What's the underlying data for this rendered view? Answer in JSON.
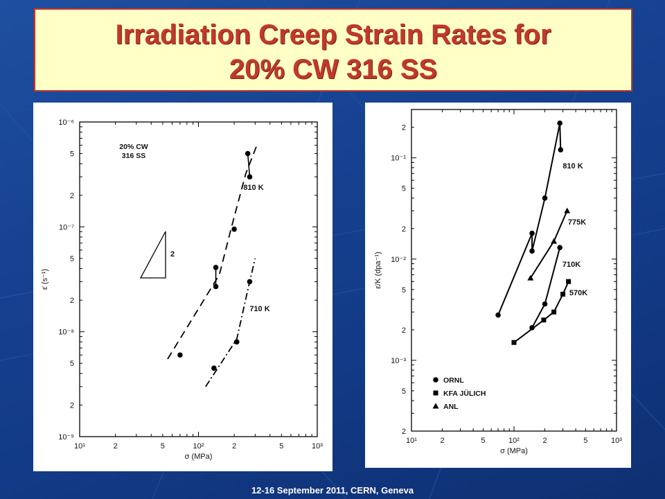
{
  "slide": {
    "title_line1": "Irradiation Creep Strain Rates for",
    "title_line2": "20% CW 316 SS",
    "footer": "12-16  September 2011, CERN, Geneva"
  },
  "chart_data": [
    {
      "type": "line",
      "annotation": "20% CW\n316 SS",
      "ylabel": "ε̇ (s⁻¹)",
      "xlabel": "σ (MPa)",
      "xscale": "log",
      "yscale": "log",
      "xlim": [
        10,
        1000
      ],
      "ylim": [
        1e-09,
        1e-06
      ],
      "x_ticks": [
        {
          "v": 10,
          "t": "10¹"
        },
        {
          "v": 20,
          "t": "2"
        },
        {
          "v": 50,
          "t": "5"
        },
        {
          "v": 100,
          "t": "10²"
        },
        {
          "v": 200,
          "t": "2"
        },
        {
          "v": 500,
          "t": "5"
        },
        {
          "v": 1000,
          "t": "10³"
        }
      ],
      "y_ticks": [
        {
          "v": 1e-09,
          "t": "10⁻⁹"
        },
        {
          "v": 2e-09,
          "t": "2"
        },
        {
          "v": 5e-09,
          "t": "5"
        },
        {
          "v": 1e-08,
          "t": "10⁻⁸"
        },
        {
          "v": 2e-08,
          "t": "2"
        },
        {
          "v": 5e-08,
          "t": "5"
        },
        {
          "v": 1e-07,
          "t": "10⁻⁷"
        },
        {
          "v": 2e-07,
          "t": "2"
        },
        {
          "v": 5e-07,
          "t": "5"
        },
        {
          "v": 1e-06,
          "t": "10⁻⁶"
        }
      ],
      "slope_label": "2",
      "series": [
        {
          "name": "810 K",
          "points": [
            [
              70,
              6e-09
            ],
            [
              140,
              4.1e-08
            ],
            [
              140,
              2.7e-08
            ],
            [
              200,
              9.5e-08
            ],
            [
              260,
              5e-07
            ],
            [
              270,
              3e-07
            ]
          ],
          "fit": [
            [
              55,
              5.5e-09
            ],
            [
              150,
              3.5e-08
            ],
            [
              190,
              1e-07
            ],
            [
              250,
              3.2e-07
            ],
            [
              310,
              6e-07
            ]
          ]
        },
        {
          "name": "710 K",
          "points": [
            [
              135,
              4.5e-09
            ],
            [
              210,
              8e-09
            ],
            [
              270,
              3e-08
            ]
          ],
          "fit": [
            [
              115,
              3e-09
            ],
            [
              210,
              8.5e-09
            ],
            [
              260,
              2.5e-08
            ],
            [
              300,
              5e-08
            ]
          ]
        }
      ]
    },
    {
      "type": "line",
      "ylabel": "ε̇/K (dpa⁻¹)",
      "xlabel": "σ (MPa)",
      "xscale": "log",
      "yscale": "log",
      "xlim": [
        10,
        1000
      ],
      "ylim": [
        0.0002,
        0.3
      ],
      "x_ticks": [
        {
          "v": 10,
          "t": "10¹"
        },
        {
          "v": 20,
          "t": "2"
        },
        {
          "v": 50,
          "t": "5"
        },
        {
          "v": 100,
          "t": "10²"
        },
        {
          "v": 200,
          "t": "2"
        },
        {
          "v": 500,
          "t": "5"
        },
        {
          "v": 1000,
          "t": "10³"
        }
      ],
      "y_ticks": [
        {
          "v": 0.0002,
          "t": "2"
        },
        {
          "v": 0.0005,
          "t": "5"
        },
        {
          "v": 0.001,
          "t": "10⁻³"
        },
        {
          "v": 0.002,
          "t": "2"
        },
        {
          "v": 0.005,
          "t": "5"
        },
        {
          "v": 0.01,
          "t": "10⁻²"
        },
        {
          "v": 0.02,
          "t": "2"
        },
        {
          "v": 0.05,
          "t": "5"
        },
        {
          "v": 0.1,
          "t": "10⁻¹"
        },
        {
          "v": 0.2,
          "t": "2"
        }
      ],
      "legend_position": "bottom-left",
      "legend": [
        {
          "marker": "circle",
          "label": "ORNL"
        },
        {
          "marker": "square",
          "label": "KFA JÜLICH"
        },
        {
          "marker": "triangle",
          "label": "ANL"
        }
      ],
      "series": [
        {
          "name": "810 K",
          "marker": "circle",
          "points": [
            [
              70,
              0.0028
            ],
            [
              150,
              0.018
            ],
            [
              150,
              0.012
            ],
            [
              200,
              0.04
            ],
            [
              280,
              0.22
            ],
            [
              285,
              0.12
            ]
          ]
        },
        {
          "name": "775K",
          "marker": "triangle",
          "points": [
            [
              145,
              0.0065
            ],
            [
              245,
              0.015
            ],
            [
              330,
              0.03
            ]
          ]
        },
        {
          "name": "710K",
          "marker": "circle",
          "points": [
            [
              150,
              0.0021
            ],
            [
              200,
              0.0036
            ],
            [
              280,
              0.013
            ]
          ]
        },
        {
          "name": "570K",
          "marker": "square",
          "points": [
            [
              100,
              0.0015
            ],
            [
              195,
              0.0025
            ],
            [
              245,
              0.003
            ],
            [
              300,
              0.0045
            ],
            [
              340,
              0.006
            ]
          ]
        }
      ]
    }
  ]
}
